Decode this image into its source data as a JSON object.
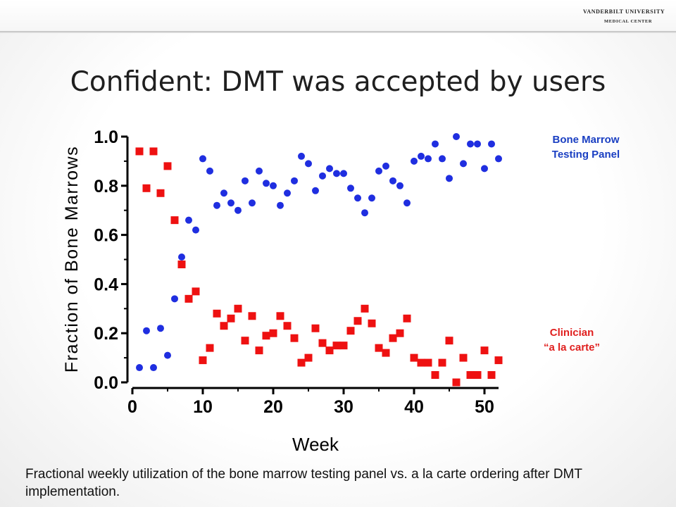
{
  "header": {
    "logo_line1": "VANDERBILT UNIVERSITY",
    "logo_line2": "MEDICAL CENTER"
  },
  "slide_title": "Confident: DMT was accepted by users",
  "caption": "Fractional weekly utilization of the bone marrow testing panel vs. a la carte ordering after DMT implementation.",
  "colors": {
    "panel": "#1f2ee0",
    "carte": "#ee1111",
    "panel_label": "#1a3fc2",
    "carte_label": "#e0201f"
  },
  "chart_data": {
    "type": "scatter",
    "xlabel": "Week",
    "ylabel": "Fraction of Bone Marrows",
    "xlim": [
      0,
      52
    ],
    "ylim": [
      0,
      1.0
    ],
    "xticks": [
      "0",
      "10",
      "20",
      "30",
      "40",
      "50"
    ],
    "yticks": [
      "0.0",
      "0.2",
      "0.4",
      "0.6",
      "0.8",
      "1.0"
    ],
    "grid": false,
    "legend_position": "right",
    "series": [
      {
        "name": "Bone Marrow\nTesting Panel",
        "marker": "circle",
        "color": "#1f2ee0",
        "x": [
          1,
          2,
          3,
          4,
          5,
          6,
          7,
          8,
          9,
          10,
          11,
          12,
          13,
          14,
          15,
          16,
          17,
          18,
          19,
          20,
          21,
          22,
          23,
          24,
          25,
          26,
          27,
          28,
          29,
          30,
          31,
          32,
          33,
          34,
          35,
          36,
          37,
          38,
          39,
          40,
          41,
          42,
          43,
          44,
          45,
          46,
          47,
          48,
          49,
          50,
          51,
          52
        ],
        "y": [
          0.06,
          0.21,
          0.06,
          0.22,
          0.11,
          0.34,
          0.51,
          0.66,
          0.62,
          0.91,
          0.86,
          0.72,
          0.77,
          0.73,
          0.7,
          0.82,
          0.73,
          0.86,
          0.81,
          0.8,
          0.72,
          0.77,
          0.82,
          0.92,
          0.89,
          0.78,
          0.84,
          0.87,
          0.85,
          0.85,
          0.79,
          0.75,
          0.69,
          0.75,
          0.86,
          0.88,
          0.82,
          0.8,
          0.73,
          0.9,
          0.92,
          0.91,
          0.97,
          0.91,
          0.83,
          1.0,
          0.89,
          0.97,
          0.97,
          0.87,
          0.97,
          0.91
        ]
      },
      {
        "name": "Clinician\n“a la carte”",
        "marker": "square",
        "color": "#ee1111",
        "x": [
          1,
          2,
          3,
          4,
          5,
          6,
          7,
          8,
          9,
          10,
          11,
          12,
          13,
          14,
          15,
          16,
          17,
          18,
          19,
          20,
          21,
          22,
          23,
          24,
          25,
          26,
          27,
          28,
          29,
          30,
          31,
          32,
          33,
          34,
          35,
          36,
          37,
          38,
          39,
          40,
          41,
          42,
          43,
          44,
          45,
          46,
          47,
          48,
          49,
          50,
          51,
          52
        ],
        "y": [
          0.94,
          0.79,
          0.94,
          0.77,
          0.88,
          0.66,
          0.48,
          0.34,
          0.37,
          0.09,
          0.14,
          0.28,
          0.23,
          0.26,
          0.3,
          0.17,
          0.27,
          0.13,
          0.19,
          0.2,
          0.27,
          0.23,
          0.18,
          0.08,
          0.1,
          0.22,
          0.16,
          0.13,
          0.15,
          0.15,
          0.21,
          0.25,
          0.3,
          0.24,
          0.14,
          0.12,
          0.18,
          0.2,
          0.26,
          0.1,
          0.08,
          0.08,
          0.03,
          0.08,
          0.17,
          0.0,
          0.1,
          0.03,
          0.03,
          0.13,
          0.03,
          0.09
        ]
      }
    ]
  }
}
